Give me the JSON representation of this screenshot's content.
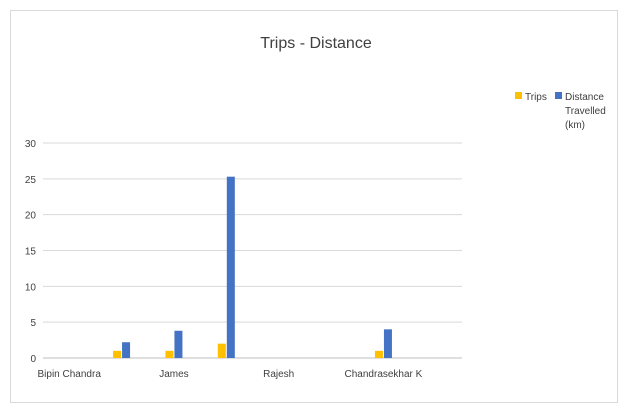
{
  "chart_data": {
    "type": "bar",
    "title": "Trips - Distance",
    "categories": [
      "Bipin Chandra",
      "",
      "James",
      "",
      "Rajesh",
      "",
      "Chandrasekhar K",
      ""
    ],
    "series": [
      {
        "name": "Trips",
        "color": "#FFC000",
        "values": [
          0,
          1,
          1,
          2,
          0,
          0,
          1,
          0
        ]
      },
      {
        "name": "Distance Travelled (km)",
        "color": "#4472C4",
        "values": [
          0,
          2.2,
          3.8,
          25.3,
          0,
          0,
          4,
          0
        ]
      }
    ],
    "ylim": [
      0,
      30
    ],
    "yticks": [
      0,
      5,
      10,
      15,
      20,
      25,
      30
    ],
    "ylabel": "",
    "xlabel": "",
    "grid": true,
    "legend_position": "right",
    "legend_lines": [
      [
        "Trips"
      ],
      [
        "Distance",
        "Travelled",
        "(km)"
      ]
    ]
  }
}
